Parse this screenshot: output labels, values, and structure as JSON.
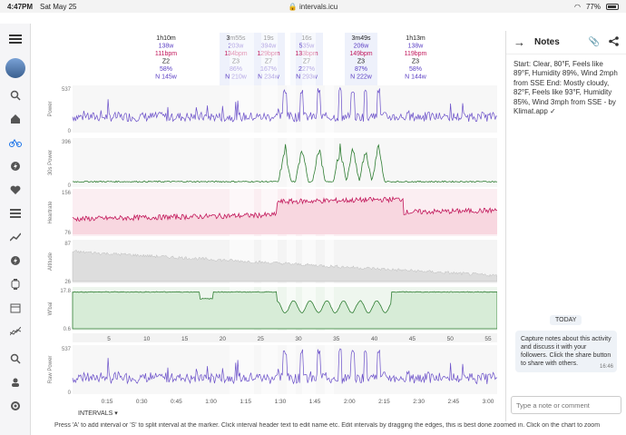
{
  "status": {
    "time": "4:47PM",
    "date": "Sat May 25",
    "url": "intervals.icu",
    "battery": "77%"
  },
  "intervals_table": [
    {
      "dur": "1h10m",
      "w": "138w",
      "bpm": "111bpm",
      "zone": "Z2",
      "pct": "58%",
      "np": "N 145w"
    },
    {
      "dur": "3m55s",
      "w": "203w",
      "bpm": "134bpm",
      "zone": "Z3",
      "pct": "86%",
      "np": "N 210w"
    },
    {
      "dur": "19s",
      "w": "394w",
      "bpm": "129bpm",
      "zone": "Z7",
      "pct": "167%",
      "np": "N 234w"
    },
    {
      "dur": "16s",
      "w": "535w",
      "bpm": "133bpm",
      "zone": "Z7",
      "pct": "227%",
      "np": "N 293w"
    },
    {
      "dur": "3m49s",
      "w": "206w",
      "bpm": "149bpm",
      "zone": "Z3",
      "pct": "87%",
      "np": "N 222w"
    },
    {
      "dur": "1h13m",
      "w": "138w",
      "bpm": "119bpm",
      "zone": "Z3",
      "pct": "58%",
      "np": "N 144w"
    }
  ],
  "charts": {
    "power": {
      "label": "Power",
      "max": "537",
      "min": "0"
    },
    "power30": {
      "label": "30s Power",
      "max": "396",
      "min": "0"
    },
    "hr": {
      "label": "Heartrate",
      "max": "156",
      "min": "76"
    },
    "alt": {
      "label": "Altitude",
      "max": "87",
      "min": "26"
    },
    "wbal": {
      "label": "W'bal",
      "max": "17.8",
      "min": "0.6"
    },
    "raw": {
      "label": "Raw Power",
      "max": "537",
      "min": "0"
    }
  },
  "km_ticks": [
    "5",
    "10",
    "15",
    "20",
    "25",
    "30",
    "35",
    "40",
    "45",
    "50",
    "55"
  ],
  "km_ticks_extra": [
    "0"
  ],
  "time_ticks": [
    "0:15",
    "0:30",
    "0:45",
    "1:00",
    "1:15",
    "1:30",
    "1:45",
    "2:00",
    "2:15",
    "2:30",
    "2:45",
    "3:00"
  ],
  "intervals_label": "INTERVALS",
  "notes": {
    "title": "Notes",
    "body": "Start: Clear, 80°F, Feels like 89°F, Humidity 89%, Wind 2mph from SSE End: Mostly cloudy, 82°F, Feels like 93°F, Humidity 85%, Wind 3mph from SSE - by Klimat.app ✓",
    "today": "TODAY",
    "tip": "Capture notes about this activity and discuss it with your followers. Click the share button to share with others.",
    "tip_time": "16:46",
    "placeholder": "Type a note or comment"
  },
  "footer": "Press 'A' to add interval or 'S' to split interval at the marker. Click interval header text to edit name etc. Edit intervals by dragging the edges, this is best done zoomed in. Click on the chart to zoom",
  "colors": {
    "power": "#6a4fc9",
    "hr": "#c2185b",
    "alt": "#aaaaaa",
    "wbal": "#2e7d32",
    "accent": "#1a73e8"
  }
}
